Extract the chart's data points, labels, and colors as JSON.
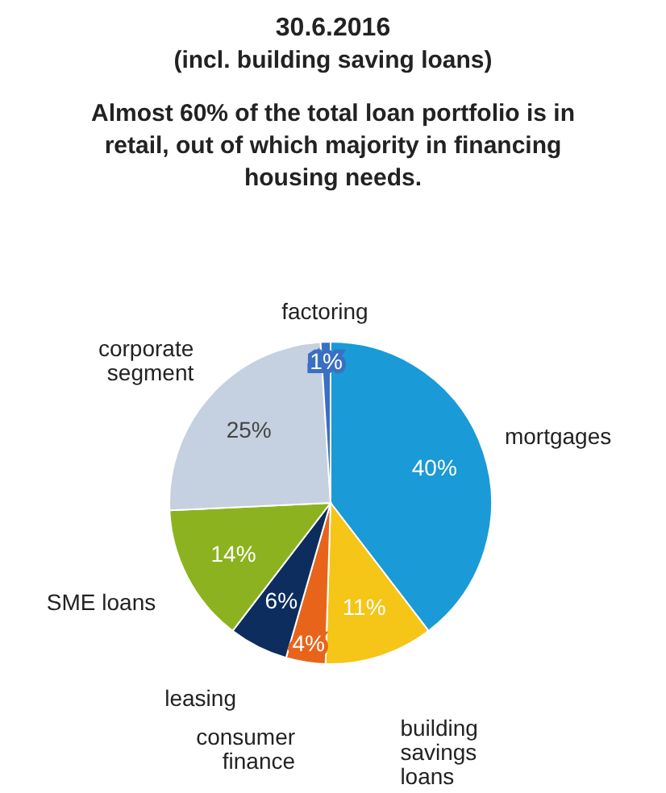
{
  "chart_data": {
    "type": "pie",
    "title": "30.6.2016",
    "subtitle": "(incl. building saving loans)",
    "annotations": [
      "Almost 60% of the total loan portfolio is in retail, out of which majority in financing housing needs."
    ],
    "categories": [
      "mortgages",
      "building savings loans",
      "consumer finance",
      "leasing",
      "SME loans",
      "corporate segment",
      "factoring"
    ],
    "values": [
      40,
      11,
      4,
      6,
      14,
      25,
      1
    ],
    "value_labels": [
      "40%",
      "11%",
      "4%",
      "6%",
      "14%",
      "25%",
      "1%"
    ],
    "colors": [
      "#1a9ad6",
      "#f5c518",
      "#e8641b",
      "#0d2d5e",
      "#8cb31f",
      "#c5d0e0",
      "#3a6fc4"
    ]
  }
}
